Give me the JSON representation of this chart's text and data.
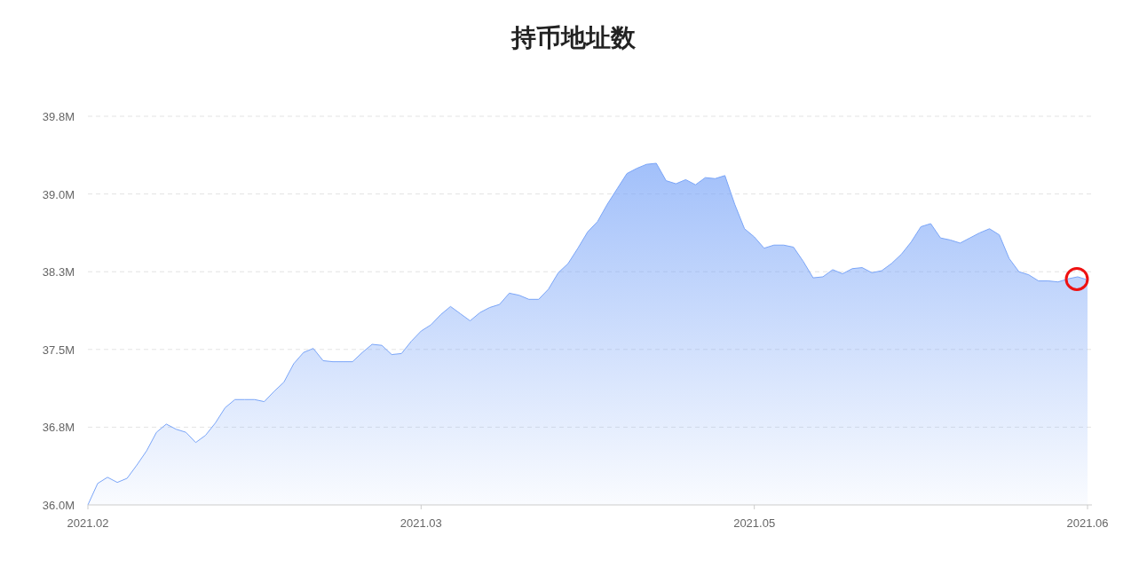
{
  "chart_data": {
    "type": "area",
    "title": "持币地址数",
    "categories": [
      "2021.02",
      null,
      null,
      null,
      null,
      null,
      null,
      null,
      null,
      null,
      null,
      null,
      null,
      null,
      null,
      null,
      null,
      null,
      null,
      null,
      null,
      null,
      null,
      null,
      null,
      null,
      null,
      null,
      null,
      null,
      null,
      null,
      null,
      null,
      "2021.03",
      null,
      null,
      null,
      null,
      null,
      null,
      null,
      null,
      null,
      null,
      null,
      null,
      null,
      null,
      null,
      null,
      null,
      null,
      null,
      null,
      null,
      null,
      null,
      null,
      null,
      null,
      null,
      null,
      null,
      null,
      null,
      null,
      null,
      "2021.05",
      null,
      null,
      null,
      null,
      null,
      null,
      null,
      null,
      null,
      null,
      null,
      null,
      null,
      null,
      null,
      null,
      null,
      null,
      null,
      null,
      null,
      null,
      null,
      null,
      null,
      null,
      null,
      null,
      null,
      null,
      null,
      null,
      null,
      "2021.06"
    ],
    "series": [
      {
        "color": "#7aa5f8",
        "values": [
          36.0,
          36.21,
          36.27,
          36.22,
          36.26,
          36.39,
          36.53,
          36.71,
          36.79,
          36.74,
          36.71,
          36.61,
          36.68,
          36.8,
          36.95,
          37.03,
          37.03,
          37.03,
          37.01,
          37.11,
          37.2,
          37.38,
          37.49,
          37.53,
          37.41,
          37.4,
          37.4,
          37.4,
          37.49,
          37.57,
          37.56,
          37.47,
          37.48,
          37.6,
          37.7,
          37.76,
          37.86,
          37.94,
          37.87,
          37.8,
          37.88,
          37.93,
          37.96,
          38.07,
          38.05,
          38.01,
          38.01,
          38.11,
          38.27,
          38.36,
          38.51,
          38.67,
          38.77,
          38.94,
          39.09,
          39.24,
          39.29,
          39.33,
          39.34,
          39.17,
          39.14,
          39.18,
          39.13,
          39.2,
          39.19,
          39.22,
          38.94,
          38.7,
          38.62,
          38.51,
          38.54,
          38.54,
          38.52,
          38.38,
          38.22,
          38.23,
          38.3,
          38.26,
          38.31,
          38.32,
          38.27,
          38.29,
          38.36,
          38.45,
          38.57,
          38.72,
          38.75,
          38.61,
          38.59,
          38.56,
          38.61,
          38.66,
          38.7,
          38.64,
          38.41,
          38.28,
          38.25,
          38.19,
          38.19,
          38.18,
          38.21,
          38.23,
          38.2
        ]
      }
    ],
    "ylim": [
      36.0,
      39.8
    ],
    "yticks": [
      {
        "value": 36.0,
        "label": "36.0M"
      },
      {
        "value": 36.76,
        "label": "36.8M"
      },
      {
        "value": 37.52,
        "label": "37.5M"
      },
      {
        "value": 38.28,
        "label": "38.3M"
      },
      {
        "value": 39.04,
        "label": "39.0M"
      },
      {
        "value": 39.8,
        "label": "39.8M"
      }
    ],
    "grid": "y"
  }
}
